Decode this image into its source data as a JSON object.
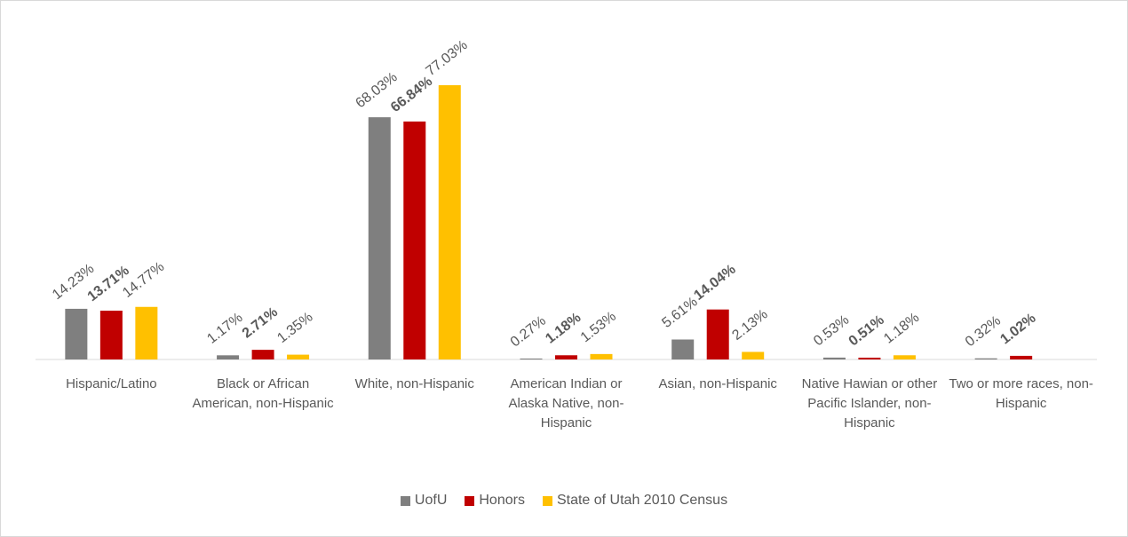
{
  "chart_data": {
    "type": "bar",
    "categories": [
      "Hispanic/Latino",
      "Black or African American, non-Hispanic",
      "White, non-Hispanic",
      "American Indian or Alaska Native, non-Hispanic",
      "Asian, non-Hispanic",
      "Native Hawian or other Pacific Islander, non-Hispanic",
      "Two or more races, non-Hispanic"
    ],
    "series": [
      {
        "name": "UofU",
        "color": "#7f7f7f",
        "values": [
          14.23,
          1.17,
          68.03,
          0.27,
          5.61,
          0.53,
          0.32
        ],
        "value_labels": [
          "14.23%",
          "1.17%",
          "68.03%",
          "0.27%",
          "5.61%",
          "0.53%",
          "0.32%"
        ]
      },
      {
        "name": "Honors",
        "color": "#c00000",
        "bold_labels": true,
        "values": [
          13.71,
          2.71,
          66.84,
          1.18,
          14.04,
          0.51,
          1.02
        ],
        "value_labels": [
          "13.71%",
          "2.71%",
          "66.84%",
          "1.18%",
          "14.04%",
          "0.51%",
          "1.02%"
        ]
      },
      {
        "name": "State of Utah 2010 Census",
        "color": "#ffc000",
        "values": [
          14.77,
          1.35,
          77.03,
          1.53,
          2.13,
          1.18,
          null
        ],
        "value_labels": [
          "14.77%",
          "1.35%",
          "77.03%",
          "1.53%",
          "2.13%",
          "1.18%",
          null
        ]
      }
    ],
    "legend": "bottom"
  }
}
